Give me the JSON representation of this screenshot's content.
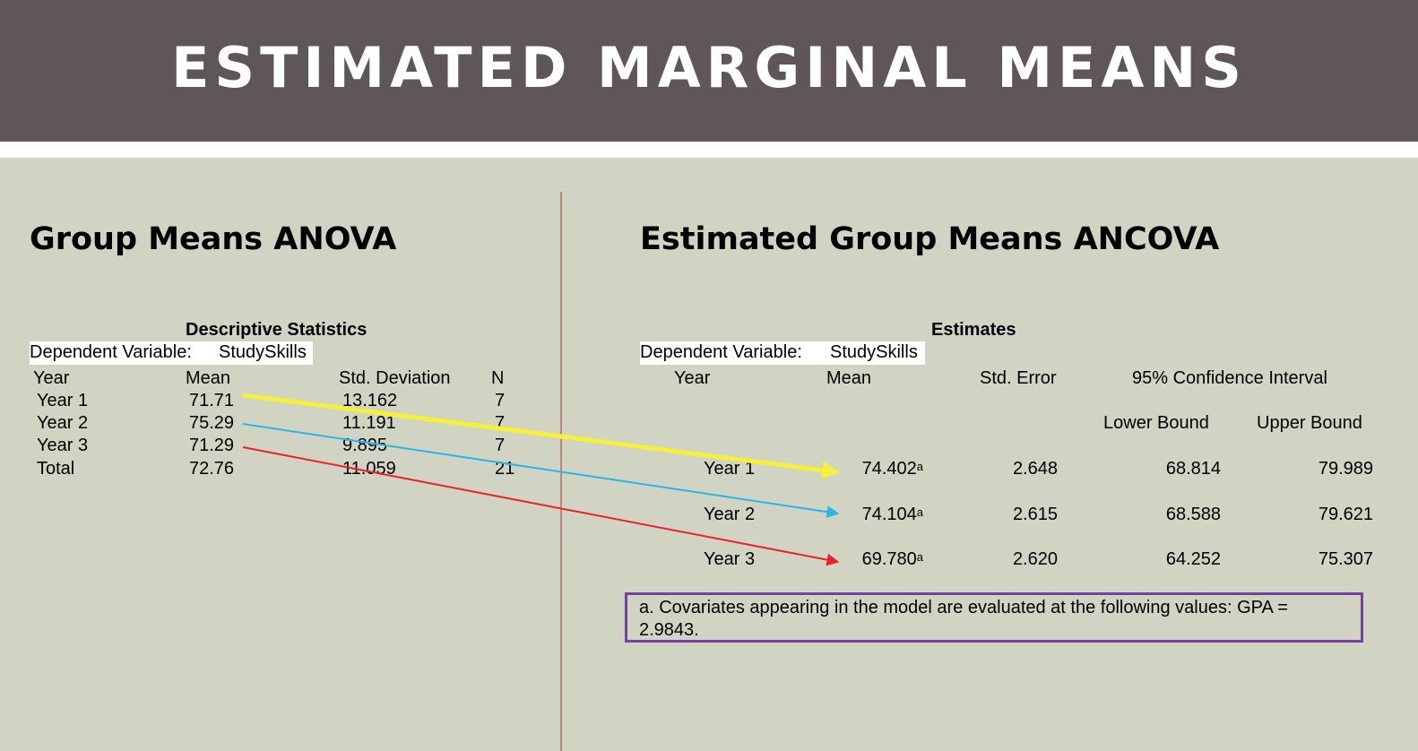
{
  "slide": {
    "title": "ESTIMATED MARGINAL MEANS",
    "colors": {
      "banner": "#5f5659",
      "background": "#d2d4c3",
      "divider": "#c9826f",
      "footnote_border": "#7a3fa6"
    }
  },
  "left": {
    "heading": "Group Means ANOVA",
    "table_title": "Descriptive Statistics",
    "dv_label": "Dependent Variable:",
    "dv_value": "StudySkills",
    "columns": [
      "Year",
      "Mean",
      "Std. Deviation",
      "N"
    ],
    "rows": [
      {
        "year": "Year 1",
        "mean": "71.71",
        "sd": "13.162",
        "n": "7"
      },
      {
        "year": "Year 2",
        "mean": "75.29",
        "sd": "11.191",
        "n": "7"
      },
      {
        "year": "Year 3",
        "mean": "71.29",
        "sd": "9.895",
        "n": "7"
      },
      {
        "year": "Total",
        "mean": "72.76",
        "sd": "11.059",
        "n": "21"
      }
    ]
  },
  "right": {
    "heading": "Estimated Group Means ANCOVA",
    "table_title": "Estimates",
    "dv_label": "Dependent Variable:",
    "dv_value": "StudySkills",
    "columns": [
      "Year",
      "Mean",
      "Std. Error",
      "95% Confidence Interval"
    ],
    "subcolumns": [
      "Lower Bound",
      "Upper Bound"
    ],
    "rows": [
      {
        "year": "Year 1",
        "mean": "74.402",
        "sup": "a",
        "se": "2.648",
        "lower": "68.814",
        "upper": "79.989"
      },
      {
        "year": "Year 2",
        "mean": "74.104",
        "sup": "a",
        "se": "2.615",
        "lower": "68.588",
        "upper": "79.621"
      },
      {
        "year": "Year 3",
        "mean": "69.780",
        "sup": "a",
        "se": "2.620",
        "lower": "64.252",
        "upper": "75.307"
      }
    ],
    "footnote": "a. Covariates appearing in the model are evaluated at the following values: GPA = 2.9843."
  },
  "arrows": [
    {
      "from": "Year 1",
      "color": "#f5f03a"
    },
    {
      "from": "Year 2",
      "color": "#29b6e8"
    },
    {
      "from": "Year 3",
      "color": "#e8232a"
    }
  ]
}
